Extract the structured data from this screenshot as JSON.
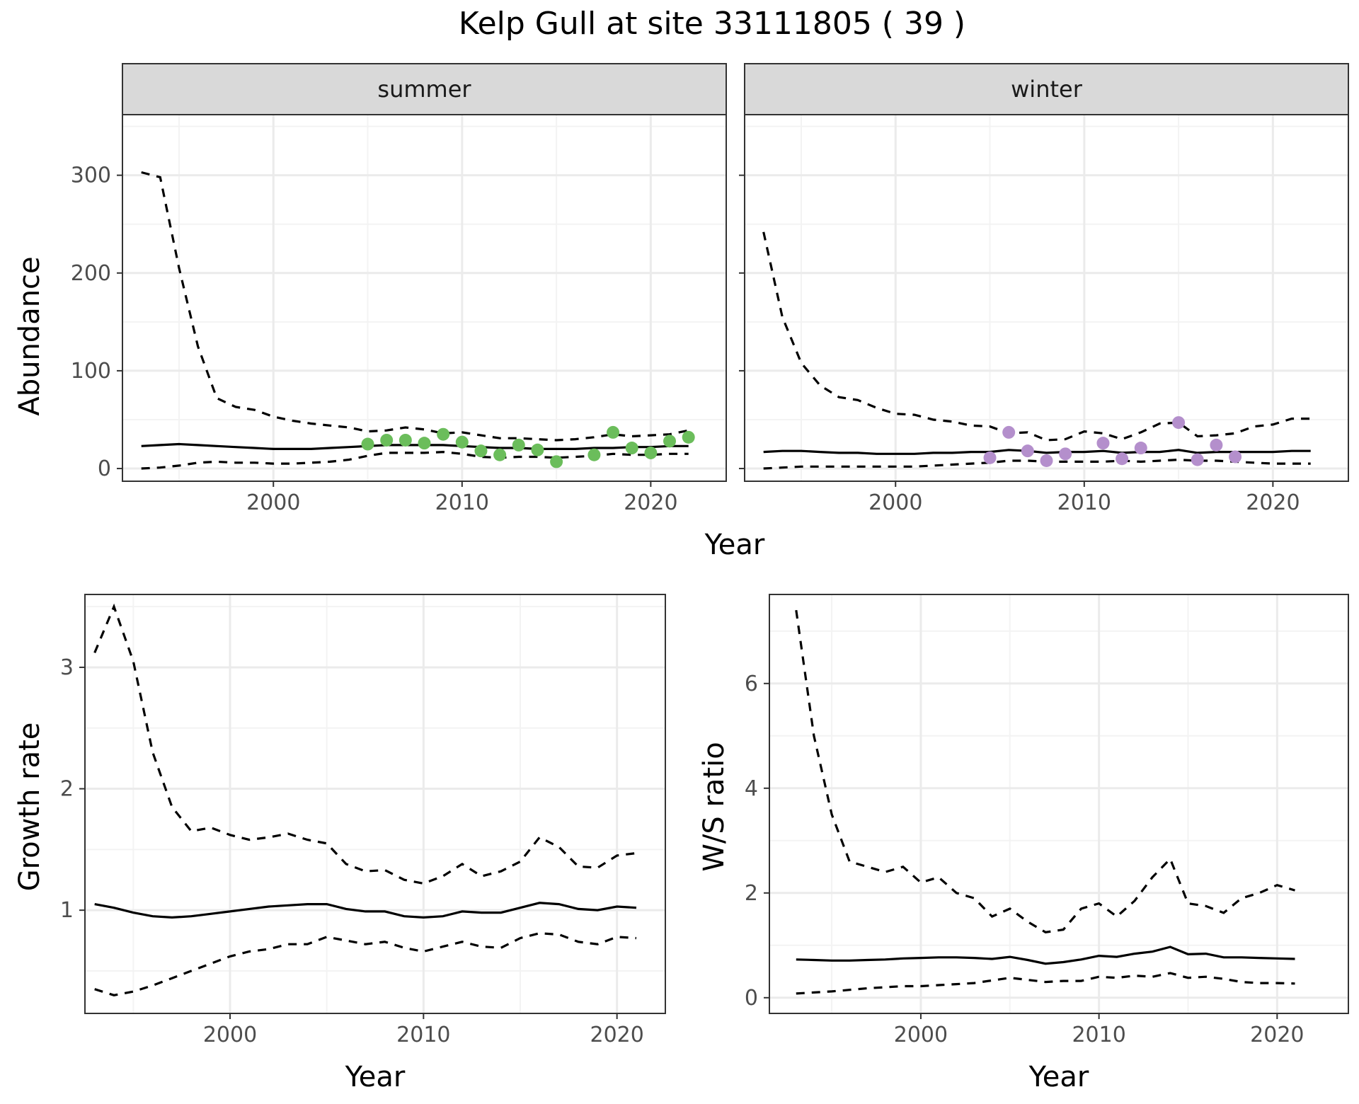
{
  "title": "Kelp Gull at site 33111805 ( 39 )",
  "colors": {
    "summer_points": "#6bbd5b",
    "winter_points": "#b48fcc",
    "line": "#000000",
    "strip_bg": "#d9d9d9",
    "grid": "#ebebeb"
  },
  "chart_data": [
    {
      "type": "line",
      "panel": "summer",
      "strip": "summer",
      "xlabel": "Year",
      "ylabel": "Abundance",
      "xlim": [
        1992,
        2024
      ],
      "ylim": [
        -13,
        362
      ],
      "xticks": [
        2000,
        2010,
        2020
      ],
      "yticks": [
        0,
        100,
        200,
        300
      ],
      "grid": true,
      "x": [
        1993,
        1994,
        1995,
        1996,
        1997,
        1998,
        1999,
        2000,
        2001,
        2002,
        2003,
        2004,
        2005,
        2006,
        2007,
        2008,
        2009,
        2010,
        2011,
        2012,
        2013,
        2014,
        2015,
        2016,
        2017,
        2018,
        2019,
        2020,
        2021,
        2022
      ],
      "estimate": [
        23,
        24,
        25,
        24,
        23,
        22,
        21,
        20,
        20,
        20,
        21,
        22,
        23,
        24,
        24,
        24,
        24,
        23,
        22,
        21,
        21,
        20,
        20,
        20,
        21,
        21,
        22,
        22,
        23,
        23
      ],
      "upper": [
        303,
        298,
        205,
        125,
        72,
        63,
        60,
        53,
        49,
        46,
        44,
        42,
        38,
        39,
        42,
        40,
        36,
        37,
        34,
        31,
        31,
        30,
        29,
        30,
        32,
        35,
        33,
        34,
        35,
        39
      ],
      "lower": [
        0,
        1,
        3,
        6,
        7,
        6,
        6,
        5,
        5,
        6,
        7,
        9,
        13,
        16,
        16,
        16,
        17,
        15,
        12,
        11,
        12,
        12,
        11,
        12,
        13,
        15,
        14,
        14,
        15,
        15
      ],
      "points": {
        "x": [
          2005,
          2006,
          2007,
          2008,
          2009,
          2010,
          2011,
          2012,
          2013,
          2014,
          2015,
          2017,
          2018,
          2019,
          2020,
          2021,
          2022
        ],
        "y": [
          25,
          29,
          29,
          26,
          35,
          27,
          18,
          14,
          24,
          19,
          7,
          14,
          37,
          21,
          16,
          28,
          32
        ]
      }
    },
    {
      "type": "line",
      "panel": "winter",
      "strip": "winter",
      "xlabel": "Year",
      "ylabel": "Abundance",
      "xlim": [
        1992,
        2024
      ],
      "ylim": [
        -13,
        362
      ],
      "xticks": [
        2000,
        2010,
        2020
      ],
      "yticks": [
        0,
        100,
        200,
        300
      ],
      "grid": true,
      "x": [
        1993,
        1994,
        1995,
        1996,
        1997,
        1998,
        1999,
        2000,
        2001,
        2002,
        2003,
        2004,
        2005,
        2006,
        2007,
        2008,
        2009,
        2010,
        2011,
        2012,
        2013,
        2014,
        2015,
        2016,
        2017,
        2018,
        2019,
        2020,
        2021,
        2022
      ],
      "estimate": [
        17,
        18,
        18,
        17,
        16,
        16,
        15,
        15,
        15,
        16,
        16,
        17,
        17,
        19,
        18,
        16,
        17,
        17,
        18,
        16,
        17,
        17,
        19,
        16,
        17,
        17,
        17,
        17,
        18,
        18
      ],
      "upper": [
        242,
        155,
        108,
        85,
        73,
        70,
        62,
        56,
        55,
        50,
        48,
        44,
        43,
        36,
        37,
        29,
        30,
        38,
        36,
        30,
        37,
        46,
        47,
        33,
        34,
        36,
        43,
        45,
        51,
        51
      ],
      "lower": [
        0,
        1,
        2,
        2,
        2,
        2,
        2,
        2,
        2,
        3,
        4,
        5,
        6,
        8,
        8,
        7,
        7,
        7,
        7,
        8,
        7,
        8,
        9,
        8,
        8,
        7,
        6,
        5,
        5,
        5
      ],
      "points": {
        "x": [
          2005,
          2006,
          2007,
          2008,
          2009,
          2011,
          2012,
          2013,
          2015,
          2016,
          2017,
          2018
        ],
        "y": [
          11,
          37,
          18,
          8,
          15,
          26,
          10,
          21,
          47,
          9,
          24,
          12
        ]
      }
    },
    {
      "type": "line",
      "panel": "growth",
      "xlabel": "Year",
      "ylabel": "Growth rate",
      "xlim": [
        1992.5,
        2022.5
      ],
      "ylim": [
        0.15,
        3.6
      ],
      "xticks": [
        2000,
        2010,
        2020
      ],
      "yticks": [
        1,
        2,
        3
      ],
      "grid": true,
      "x": [
        1993,
        1994,
        1995,
        1996,
        1997,
        1998,
        1999,
        2000,
        2001,
        2002,
        2003,
        2004,
        2005,
        2006,
        2007,
        2008,
        2009,
        2010,
        2011,
        2012,
        2013,
        2014,
        2015,
        2016,
        2017,
        2018,
        2019,
        2020,
        2021
      ],
      "estimate": [
        1.05,
        1.02,
        0.98,
        0.95,
        0.94,
        0.95,
        0.97,
        0.99,
        1.01,
        1.03,
        1.04,
        1.05,
        1.05,
        1.01,
        0.99,
        0.99,
        0.95,
        0.94,
        0.95,
        0.99,
        0.98,
        0.98,
        1.02,
        1.06,
        1.05,
        1.01,
        1.0,
        1.03,
        1.02
      ],
      "upper": [
        3.12,
        3.5,
        3.05,
        2.3,
        1.85,
        1.65,
        1.68,
        1.62,
        1.58,
        1.6,
        1.63,
        1.58,
        1.55,
        1.38,
        1.32,
        1.33,
        1.25,
        1.22,
        1.28,
        1.38,
        1.28,
        1.32,
        1.4,
        1.6,
        1.52,
        1.36,
        1.35,
        1.45,
        1.47
      ],
      "lower": [
        0.35,
        0.3,
        0.33,
        0.38,
        0.44,
        0.5,
        0.56,
        0.62,
        0.66,
        0.68,
        0.72,
        0.72,
        0.78,
        0.75,
        0.72,
        0.74,
        0.69,
        0.66,
        0.7,
        0.74,
        0.7,
        0.69,
        0.77,
        0.81,
        0.8,
        0.74,
        0.72,
        0.78,
        0.77
      ]
    },
    {
      "type": "line",
      "panel": "ratio",
      "xlabel": "Year",
      "ylabel": "W/S ratio",
      "xlim": [
        1991.5,
        2024
      ],
      "ylim": [
        -0.3,
        7.7
      ],
      "xticks": [
        2000,
        2010,
        2020
      ],
      "yticks": [
        0,
        2,
        4,
        6
      ],
      "grid": true,
      "x": [
        1993,
        1994,
        1995,
        1996,
        1997,
        1998,
        1999,
        2000,
        2001,
        2002,
        2003,
        2004,
        2005,
        2006,
        2007,
        2008,
        2009,
        2010,
        2011,
        2012,
        2013,
        2014,
        2015,
        2016,
        2017,
        2018,
        2019,
        2020,
        2021
      ],
      "estimate": [
        0.73,
        0.72,
        0.71,
        0.71,
        0.72,
        0.73,
        0.75,
        0.76,
        0.77,
        0.77,
        0.76,
        0.74,
        0.78,
        0.72,
        0.65,
        0.68,
        0.73,
        0.8,
        0.78,
        0.84,
        0.88,
        0.97,
        0.83,
        0.84,
        0.77,
        0.77,
        0.76,
        0.75,
        0.74
      ],
      "upper": [
        7.4,
        5.0,
        3.5,
        2.6,
        2.5,
        2.4,
        2.5,
        2.2,
        2.3,
        2.0,
        1.9,
        1.55,
        1.7,
        1.45,
        1.25,
        1.3,
        1.7,
        1.8,
        1.55,
        1.85,
        2.3,
        2.65,
        1.8,
        1.75,
        1.62,
        1.9,
        2.0,
        2.15,
        2.05
      ],
      "lower": [
        0.08,
        0.1,
        0.12,
        0.15,
        0.18,
        0.2,
        0.22,
        0.22,
        0.24,
        0.26,
        0.28,
        0.33,
        0.38,
        0.34,
        0.3,
        0.32,
        0.32,
        0.4,
        0.38,
        0.42,
        0.4,
        0.47,
        0.38,
        0.4,
        0.36,
        0.3,
        0.28,
        0.28,
        0.27
      ]
    }
  ]
}
